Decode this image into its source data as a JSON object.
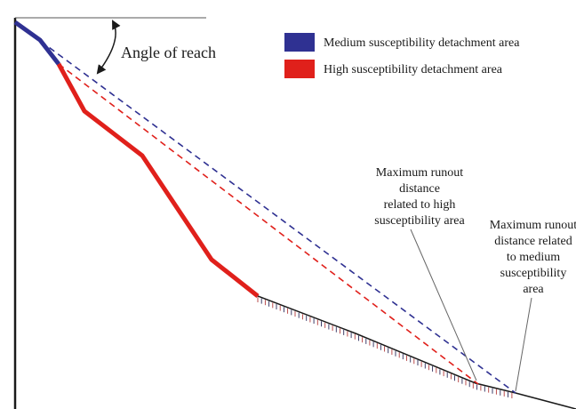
{
  "angle_label": "Angle of reach",
  "legend": [
    {
      "label": "Medium susceptibility detachment area",
      "color": "#2f3192"
    },
    {
      "label": "High susceptibility detachment area",
      "color": "#e0201b"
    }
  ],
  "annotations": {
    "high_runout": {
      "lines": [
        "Maximum runout",
        "distance",
        "related to high",
        "susceptibility area"
      ]
    },
    "medium_runout": {
      "lines": [
        "Maximum runout",
        "distance related",
        "to medium",
        "susceptibility",
        "area"
      ]
    }
  },
  "colors": {
    "medium": "#2f3192",
    "high": "#e0201b",
    "ground": "#1a1a1a",
    "hatch": "#1a1a1a"
  }
}
